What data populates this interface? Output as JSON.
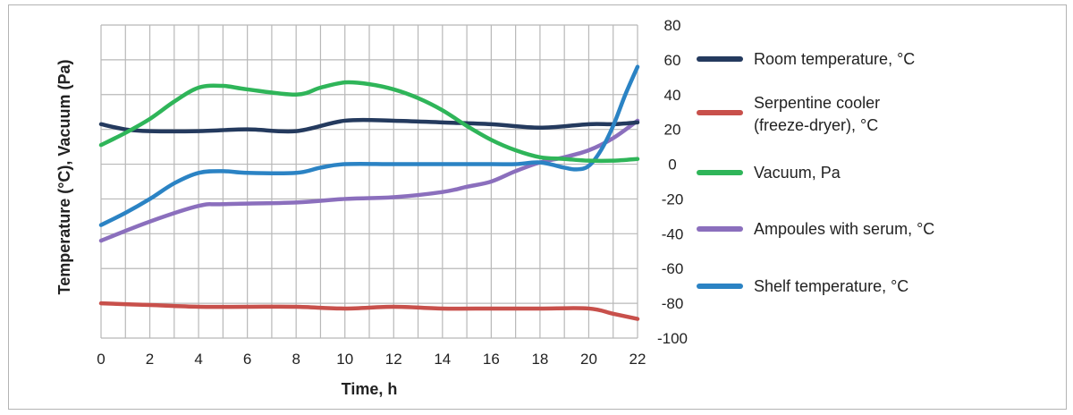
{
  "chart_data": {
    "type": "line",
    "title": "",
    "xlabel": "Time, h",
    "ylabel": "Temperature (°C), Vacuum (Pa)",
    "xlim": [
      0,
      22
    ],
    "ylim": [
      -100,
      80
    ],
    "x_ticks": [
      "0",
      "2",
      "4",
      "6",
      "8",
      "10",
      "12",
      "14",
      "16",
      "18",
      "20",
      "22"
    ],
    "y_ticks": [
      "80",
      "60",
      "40",
      "20",
      "0",
      "-20",
      "-40",
      "-60",
      "-80",
      "-100"
    ],
    "grid": true,
    "legend_position": "right",
    "series": [
      {
        "name": "Room temperature, °C",
        "color": "#243a5e",
        "x": [
          0,
          1,
          2,
          4,
          6,
          8,
          10,
          12,
          14,
          16,
          18,
          20,
          21,
          22
        ],
        "y": [
          23,
          20,
          19,
          19,
          20,
          19,
          25,
          25,
          24,
          23,
          21,
          23,
          23,
          24
        ]
      },
      {
        "name": "Serpentine cooler\n(freeze-dryer), °C",
        "label_lines": [
          "Serpentine cooler",
          "(freeze-dryer), °C"
        ],
        "color": "#c8504b",
        "x": [
          0,
          2,
          4,
          6,
          8,
          10,
          12,
          14,
          16,
          18,
          20,
          21,
          22
        ],
        "y": [
          -80,
          -81,
          -82,
          -82,
          -82,
          -83,
          -82,
          -83,
          -83,
          -83,
          -83,
          -86,
          -89
        ]
      },
      {
        "name": "Vacuum, Pa",
        "color": "#2fb559",
        "x": [
          0,
          1,
          2,
          3,
          4,
          5,
          6,
          8,
          9,
          10,
          11,
          12,
          13,
          14,
          15,
          16,
          17,
          18,
          19,
          20,
          21,
          22
        ],
        "y": [
          11,
          18,
          26,
          36,
          44,
          45,
          43,
          40,
          44,
          47,
          46,
          43,
          38,
          31,
          22,
          14,
          8,
          4,
          3,
          2,
          2,
          3
        ]
      },
      {
        "name": "Ampoules with serum, °C",
        "color": "#8b6fbd",
        "x": [
          0,
          2,
          4,
          5,
          8,
          10,
          12,
          14,
          15,
          16,
          17,
          18,
          19,
          20,
          21,
          22
        ],
        "y": [
          -44,
          -33,
          -24,
          -23,
          -22,
          -20,
          -19,
          -16,
          -13,
          -10,
          -4,
          1,
          4,
          8,
          15,
          25
        ]
      },
      {
        "name": "Shelf temperature, °C",
        "color": "#2b83c4",
        "x": [
          0,
          1,
          2,
          3,
          4,
          5,
          6,
          8,
          9,
          10,
          12,
          14,
          16,
          17,
          18,
          19,
          19.5,
          20,
          20.5,
          21,
          21.5,
          22
        ],
        "y": [
          -35,
          -28,
          -20,
          -11,
          -5,
          -4,
          -5,
          -5,
          -2,
          0,
          0,
          0,
          0,
          0,
          1,
          -2,
          -3,
          -1,
          8,
          22,
          40,
          56
        ]
      }
    ]
  }
}
